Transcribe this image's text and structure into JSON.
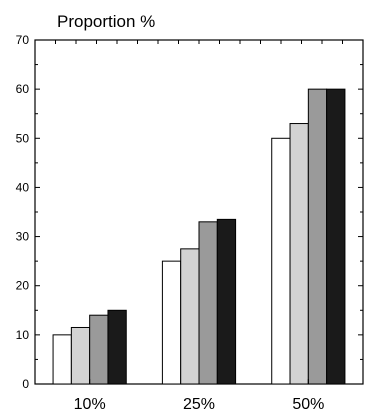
{
  "chart_data": {
    "type": "bar",
    "title": "",
    "xlabel": "",
    "ylabel": "Proportion %",
    "ylim": [
      0,
      70
    ],
    "yticks": [
      0,
      10,
      20,
      30,
      40,
      50,
      60,
      70
    ],
    "categories": [
      "10%",
      "25%",
      "50%"
    ],
    "series": [
      {
        "values": [
          10,
          25,
          50
        ],
        "color": "#ffffff"
      },
      {
        "values": [
          11.5,
          27.5,
          53
        ],
        "color": "#d3d3d3"
      },
      {
        "values": [
          14,
          33,
          60
        ],
        "color": "#9a9a9a"
      },
      {
        "values": [
          15,
          33.5,
          60
        ],
        "color": "#1a1a1a"
      }
    ],
    "grid": false,
    "legend": "none"
  }
}
